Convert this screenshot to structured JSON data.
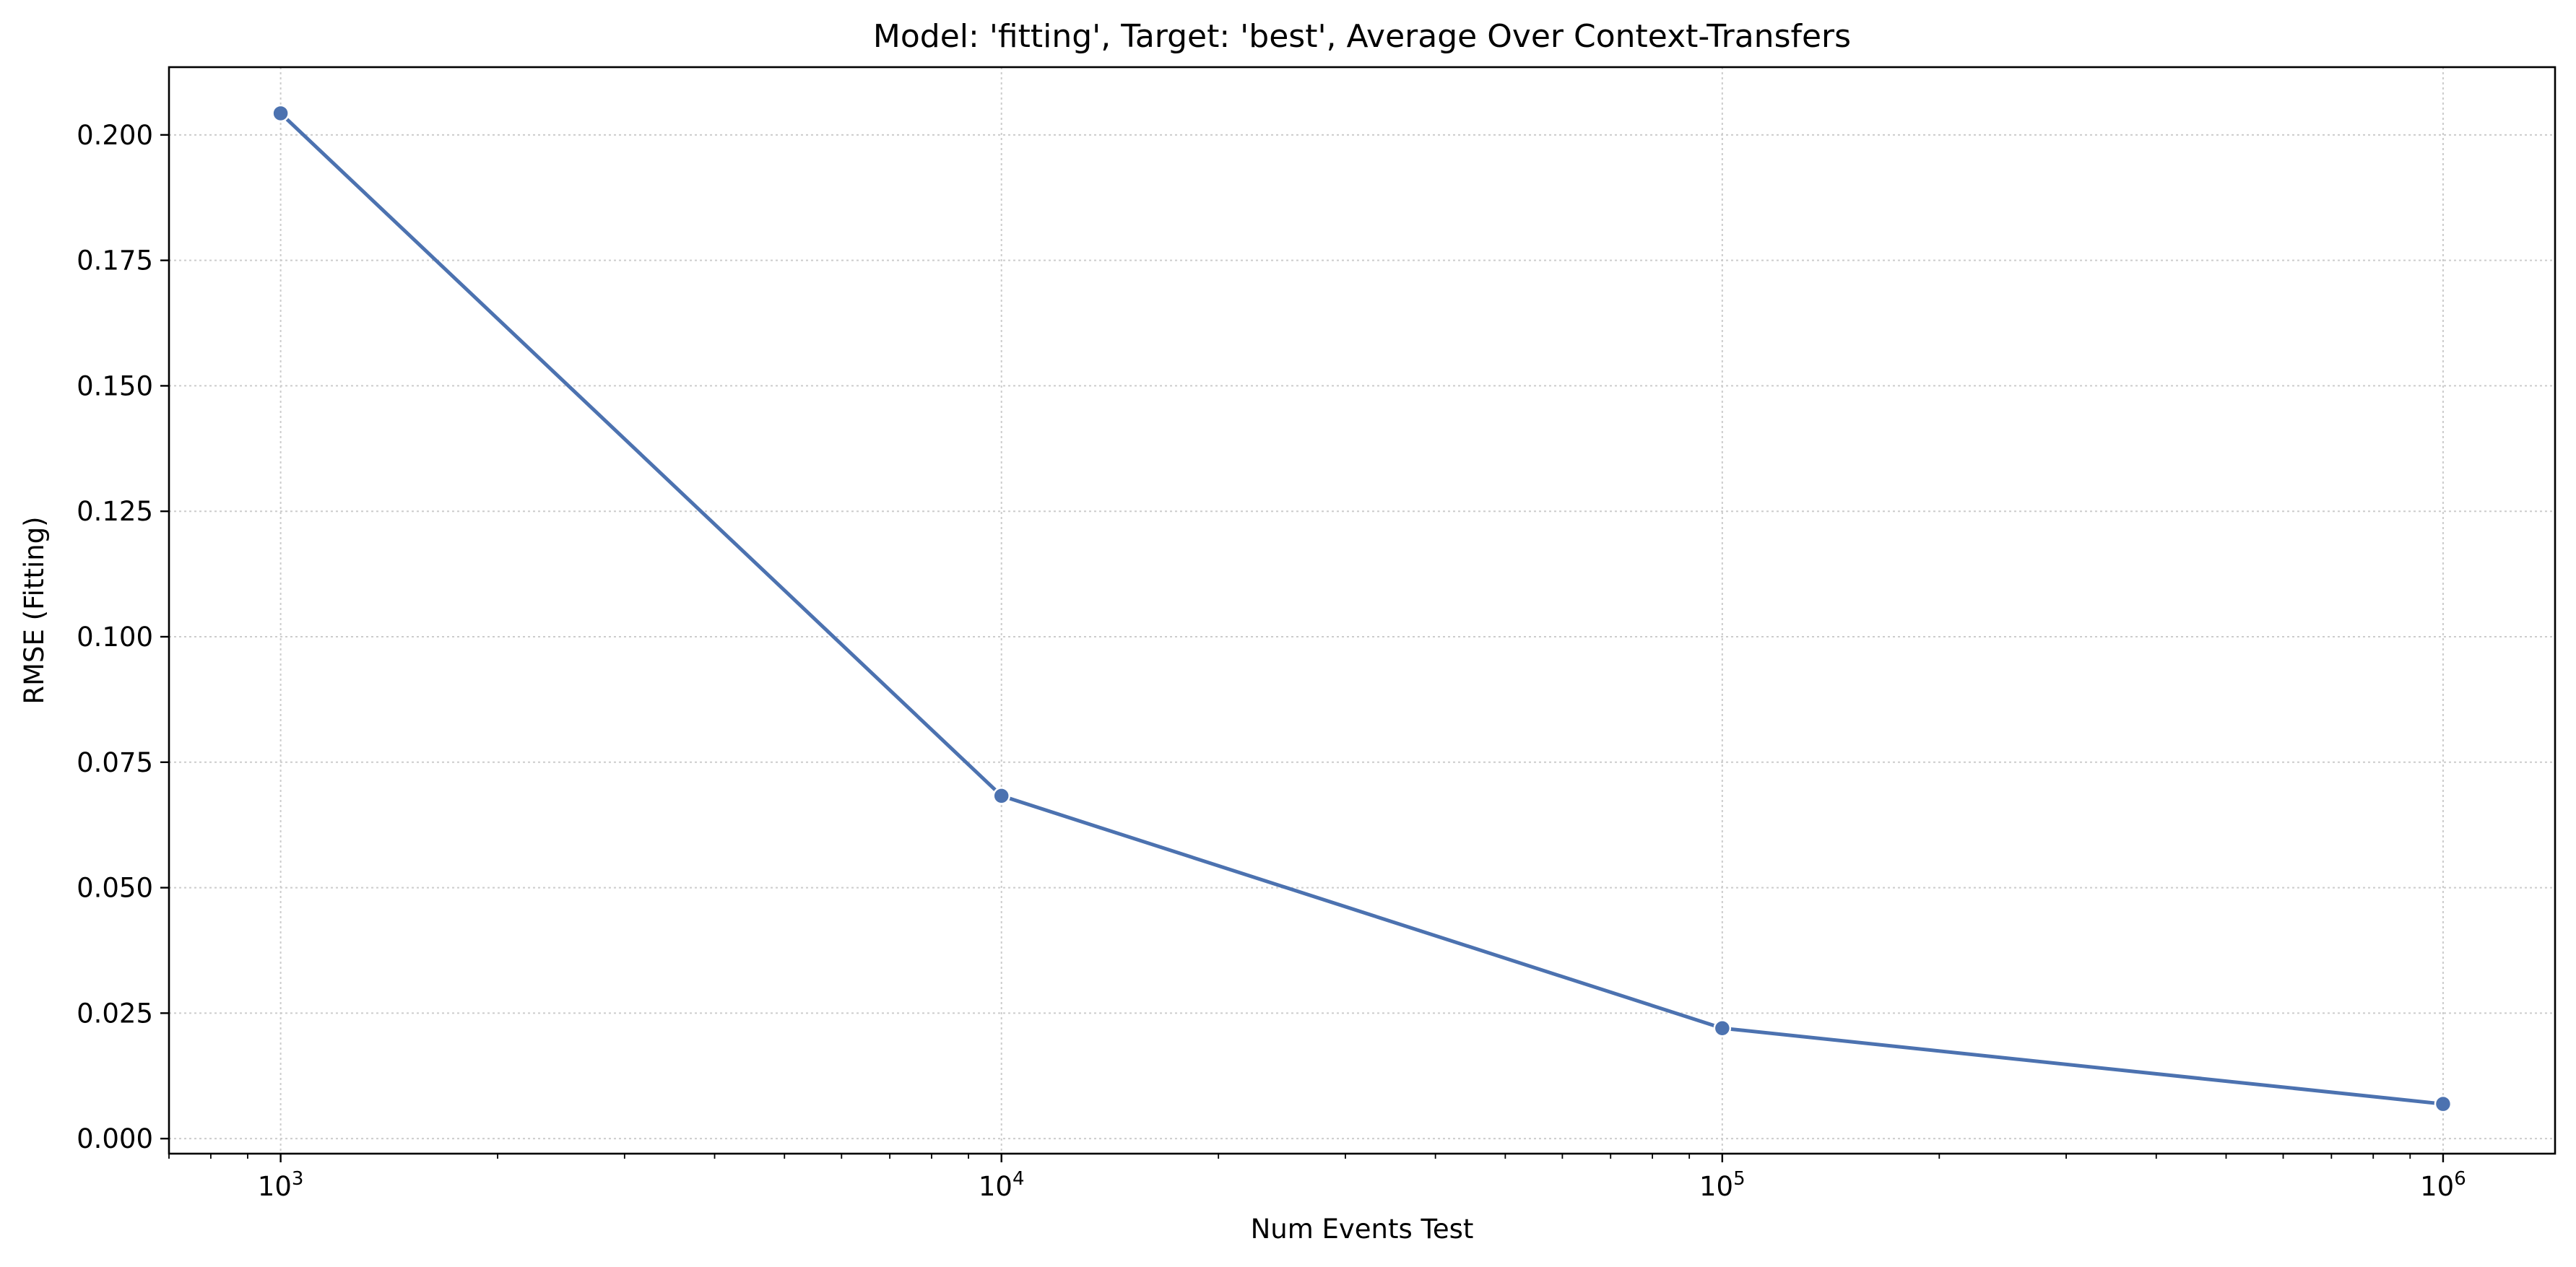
{
  "chart_data": {
    "type": "line",
    "title": "Model: 'fitting', Target: 'best', Average Over Context-Transfers",
    "xlabel": "Num Events Test",
    "ylabel": "RMSE (Fitting)",
    "x_scale": "log",
    "xlim": [
      700,
      1430000
    ],
    "ylim": [
      -0.003,
      0.2135
    ],
    "x_ticks": [
      1000,
      10000,
      100000,
      1000000
    ],
    "x_tick_labels": [
      {
        "base": "10",
        "exp": "3"
      },
      {
        "base": "10",
        "exp": "4"
      },
      {
        "base": "10",
        "exp": "5"
      },
      {
        "base": "10",
        "exp": "6"
      }
    ],
    "y_ticks": [
      0.0,
      0.025,
      0.05,
      0.075,
      0.1,
      0.125,
      0.15,
      0.175,
      0.2
    ],
    "y_tick_labels": [
      "0.000",
      "0.025",
      "0.050",
      "0.075",
      "0.100",
      "0.125",
      "0.150",
      "0.175",
      "0.200"
    ],
    "grid": true,
    "series": [
      {
        "x": [
          1000,
          10000,
          100000,
          1000000
        ],
        "y": [
          0.2043,
          0.0683,
          0.022,
          0.0069
        ],
        "color": "#4c72b0",
        "marker": "circle"
      }
    ]
  }
}
